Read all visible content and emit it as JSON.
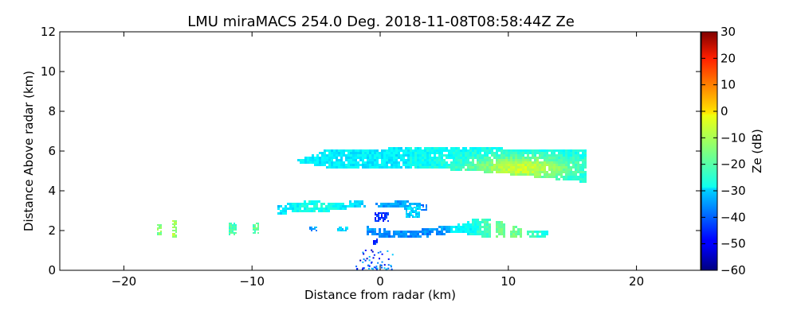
{
  "chart_data": {
    "type": "heatmap",
    "title": "LMU miraMACS 254.0 Deg. 2018-11-08T08:58:44Z  Ze",
    "xlabel": "Distance from radar (km)",
    "ylabel": "Distance Above radar  (km)",
    "xlim": [
      -25,
      25
    ],
    "ylim": [
      0,
      12
    ],
    "xticks": [
      -20,
      -10,
      0,
      10,
      20
    ],
    "xtick_labels": [
      "−20",
      "−10",
      "0",
      "10",
      "20"
    ],
    "yticks": [
      0,
      2,
      4,
      6,
      8,
      10,
      12
    ],
    "ytick_labels": [
      "0",
      "2",
      "4",
      "6",
      "8",
      "10",
      "12"
    ],
    "grid": false,
    "colorbar": {
      "label": "Ze (dB)",
      "range": [
        -60,
        30
      ],
      "ticks": [
        -60,
        -50,
        -40,
        -30,
        -20,
        -10,
        0,
        10,
        20,
        30
      ],
      "tick_labels": [
        "−60",
        "−50",
        "−40",
        "−30",
        "−20",
        "−10",
        "0",
        "10",
        "20",
        "30"
      ],
      "colormap": "jet"
    },
    "regions": [
      {
        "name": "upper-cloud-layer",
        "x": [
          -7.0,
          16.0
        ],
        "y": [
          4.3,
          6.3
        ],
        "ze_range": [
          -30,
          -8
        ]
      },
      {
        "name": "mid-layer-left",
        "x": [
          -8.0,
          3.0
        ],
        "y": [
          2.8,
          3.5
        ],
        "ze_range": [
          -35,
          -22
        ]
      },
      {
        "name": "lower-layer",
        "x": [
          -1.0,
          13.0
        ],
        "y": [
          1.5,
          2.6
        ],
        "ze_range": [
          -45,
          -12
        ]
      },
      {
        "name": "near-radar-echo",
        "x": [
          -2.0,
          1.0
        ],
        "y": [
          0.0,
          1.0
        ],
        "ze_range": [
          -55,
          -30
        ]
      }
    ]
  }
}
